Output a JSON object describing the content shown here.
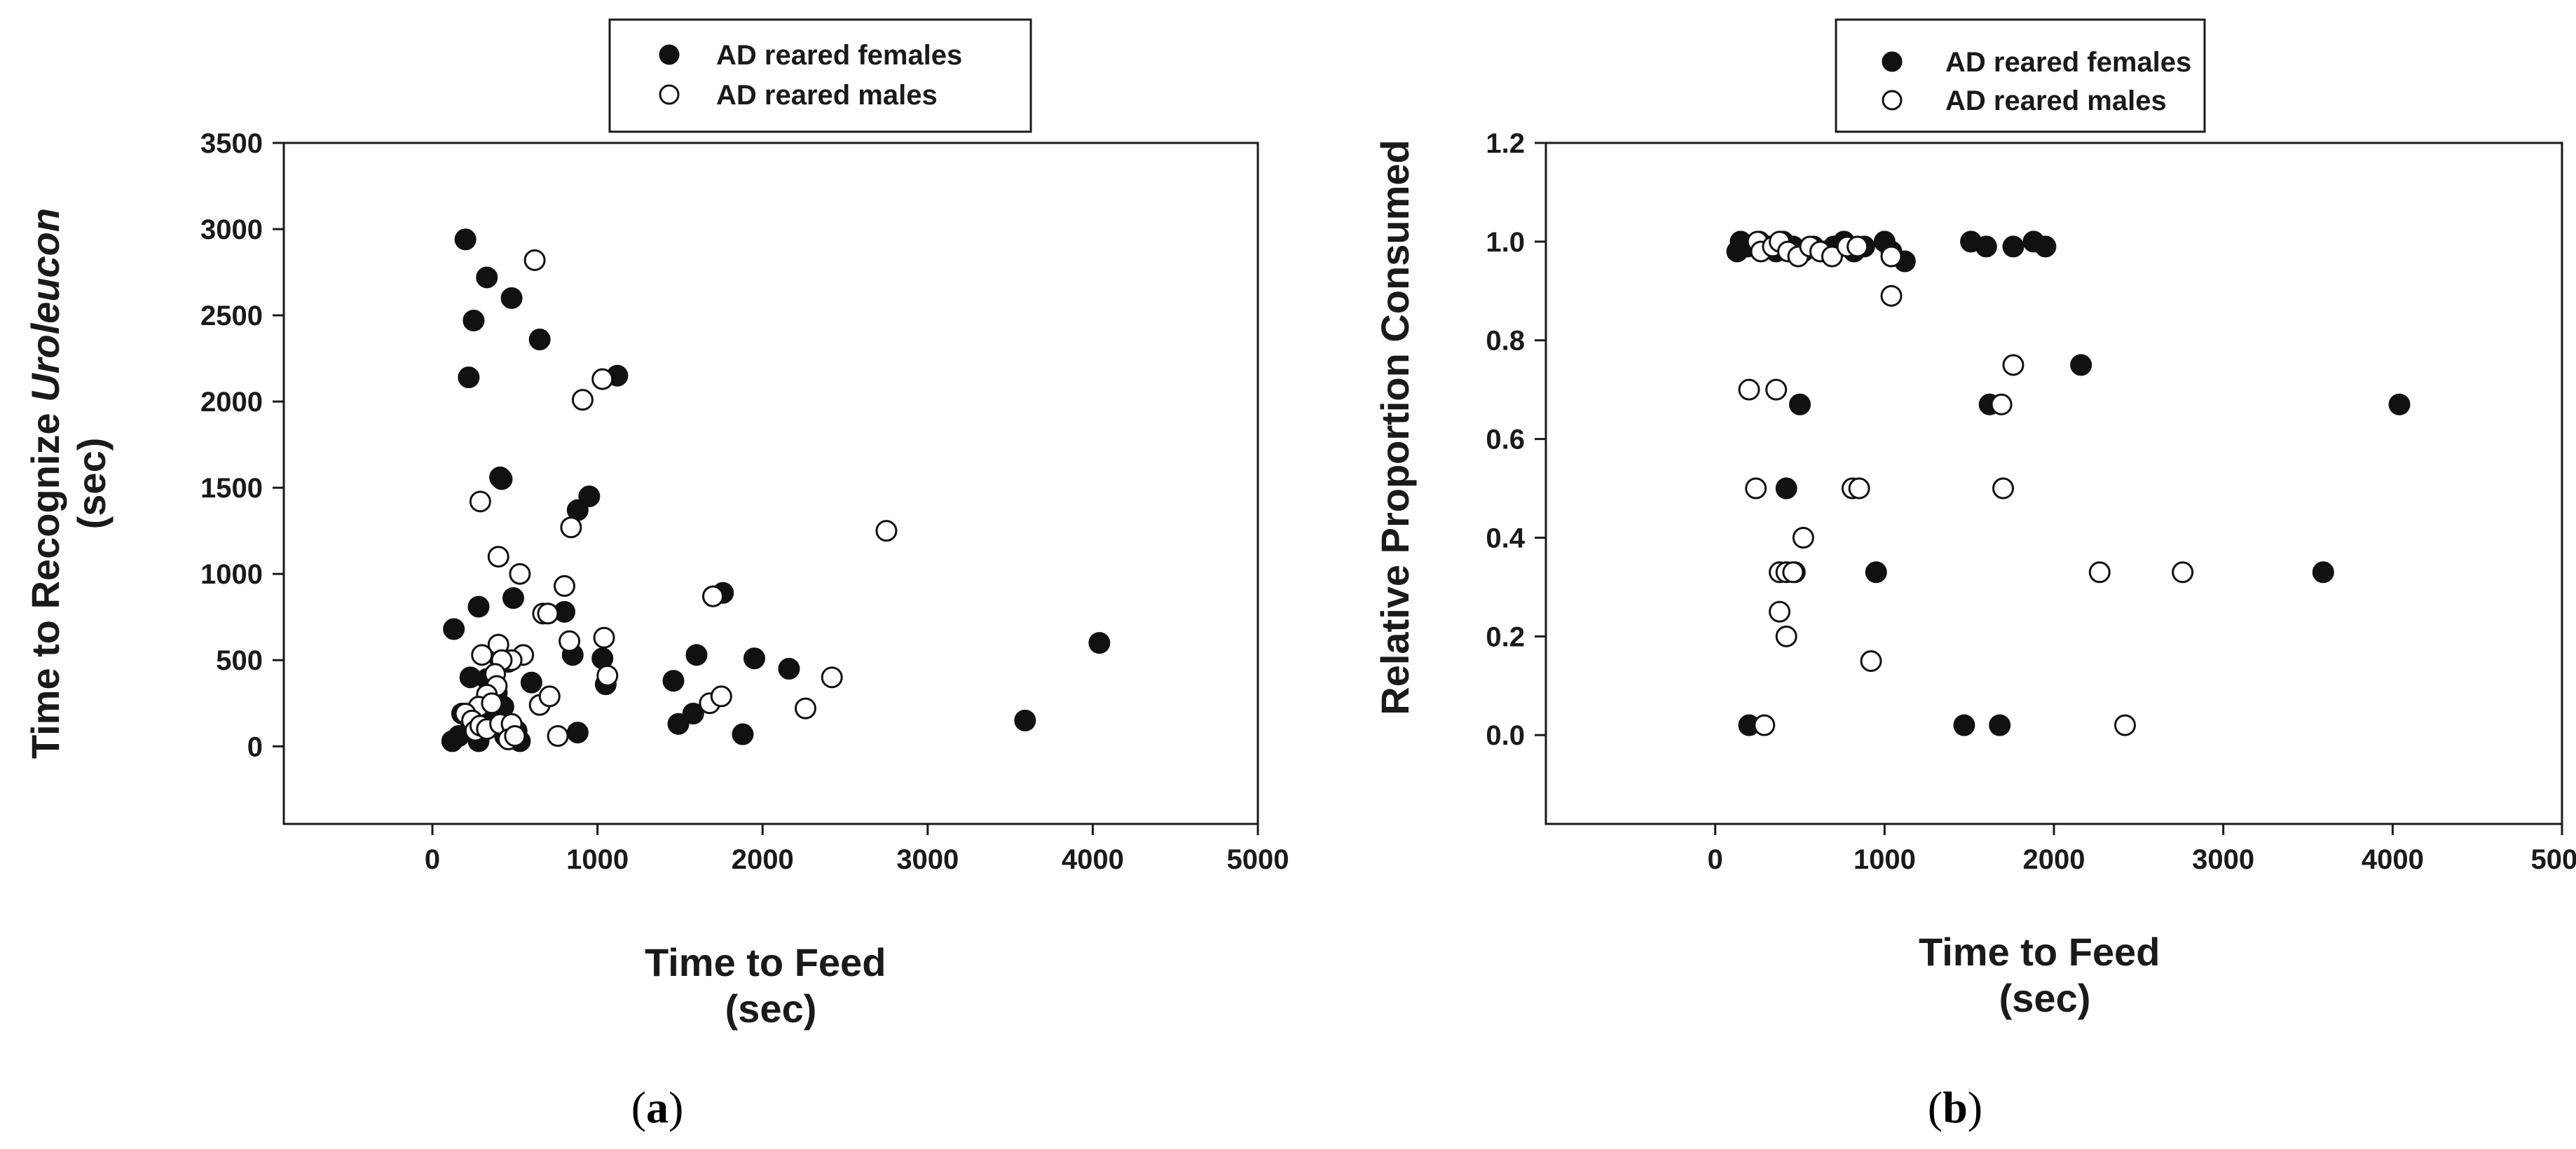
{
  "chart_data": [
    {
      "type": "scatter",
      "panel_label": "a",
      "xlabel_line1": "Time to Feed",
      "xlabel_line2": "(sec)",
      "ylabel_prefix": "Time to Recognize ",
      "ylabel_italic": "Uroleucon",
      "ylabel_line2": "(sec)",
      "xlim": [
        -900,
        5000
      ],
      "ylim": [
        -450,
        3500
      ],
      "xticks": [
        0,
        1000,
        2000,
        3000,
        4000,
        5000
      ],
      "yticks": [
        0,
        500,
        1000,
        1500,
        2000,
        2500,
        3000,
        3500
      ],
      "tick_labels_x": [
        "0",
        "1000",
        "2000",
        "3000",
        "4000",
        "5000"
      ],
      "tick_labels_y": [
        "0",
        "500",
        "1000",
        "1500",
        "2000",
        "2500",
        "3000",
        "3500"
      ],
      "legend": [
        "AD reared females",
        "AD reared males"
      ],
      "series": [
        {
          "name": "AD reared females",
          "marker": "filled",
          "points": [
            [
              200,
              2940
            ],
            [
              330,
              2720
            ],
            [
              480,
              2600
            ],
            [
              250,
              2470
            ],
            [
              650,
              2360
            ],
            [
              220,
              2140
            ],
            [
              1120,
              2150
            ],
            [
              410,
              1560
            ],
            [
              420,
              1550
            ],
            [
              950,
              1450
            ],
            [
              880,
              1370
            ],
            [
              130,
              680
            ],
            [
              280,
              810
            ],
            [
              490,
              860
            ],
            [
              800,
              780
            ],
            [
              850,
              530
            ],
            [
              1030,
              510
            ],
            [
              1050,
              360
            ],
            [
              600,
              370
            ],
            [
              230,
              400
            ],
            [
              330,
              390
            ],
            [
              400,
              520
            ],
            [
              460,
              490
            ],
            [
              350,
              280
            ],
            [
              390,
              310
            ],
            [
              430,
              230
            ],
            [
              300,
              180
            ],
            [
              370,
              210
            ],
            [
              180,
              190
            ],
            [
              230,
              100
            ],
            [
              160,
              60
            ],
            [
              120,
              30
            ],
            [
              280,
              30
            ],
            [
              440,
              60
            ],
            [
              470,
              50
            ],
            [
              530,
              30
            ],
            [
              510,
              90
            ],
            [
              880,
              80
            ],
            [
              1460,
              380
            ],
            [
              1600,
              530
            ],
            [
              1490,
              130
            ],
            [
              1580,
              190
            ],
            [
              1760,
              890
            ],
            [
              1700,
              870
            ],
            [
              1950,
              510
            ],
            [
              2160,
              450
            ],
            [
              1880,
              70
            ],
            [
              3590,
              150
            ],
            [
              4040,
              600
            ]
          ]
        },
        {
          "name": "AD reared males",
          "marker": "open",
          "points": [
            [
              620,
              2820
            ],
            [
              1030,
              2130
            ],
            [
              910,
              2010
            ],
            [
              290,
              1420
            ],
            [
              840,
              1270
            ],
            [
              400,
              1100
            ],
            [
              530,
              1000
            ],
            [
              800,
              930
            ],
            [
              670,
              770
            ],
            [
              700,
              770
            ],
            [
              830,
              610
            ],
            [
              1040,
              630
            ],
            [
              550,
              530
            ],
            [
              480,
              500
            ],
            [
              1060,
              410
            ],
            [
              400,
              590
            ],
            [
              300,
              530
            ],
            [
              420,
              500
            ],
            [
              380,
              420
            ],
            [
              390,
              350
            ],
            [
              330,
              300
            ],
            [
              280,
              230
            ],
            [
              360,
              250
            ],
            [
              200,
              190
            ],
            [
              240,
              150
            ],
            [
              260,
              90
            ],
            [
              290,
              120
            ],
            [
              330,
              100
            ],
            [
              410,
              130
            ],
            [
              480,
              130
            ],
            [
              460,
              40
            ],
            [
              500,
              60
            ],
            [
              650,
              240
            ],
            [
              710,
              290
            ],
            [
              760,
              60
            ],
            [
              1700,
              870
            ],
            [
              1680,
              250
            ],
            [
              1750,
              290
            ],
            [
              2420,
              400
            ],
            [
              2260,
              220
            ],
            [
              2750,
              1250
            ]
          ]
        }
      ]
    },
    {
      "type": "scatter",
      "panel_label": "b",
      "xlabel_line1": "Time to Feed",
      "xlabel_line2": "(sec)",
      "ylabel": "Relative Proportion Consumed",
      "xlim": [
        -1000,
        5000
      ],
      "ylim": [
        -0.18,
        1.2
      ],
      "xticks": [
        0,
        1000,
        2000,
        3000,
        4000,
        5000
      ],
      "yticks": [
        0.0,
        0.2,
        0.4,
        0.6,
        0.8,
        1.0,
        1.2
      ],
      "tick_labels_x": [
        "0",
        "1000",
        "2000",
        "3000",
        "4000",
        "5000"
      ],
      "tick_labels_y": [
        "0.0",
        "0.2",
        "0.4",
        "0.6",
        "0.8",
        "1.0",
        "1.2"
      ],
      "legend": [
        "AD reared females",
        "AD reared males"
      ],
      "series": [
        {
          "name": "AD reared females",
          "marker": "filled",
          "points": [
            [
              130,
              0.98
            ],
            [
              150,
              1.0
            ],
            [
              190,
              0.99
            ],
            [
              260,
              1.0
            ],
            [
              320,
              0.99
            ],
            [
              360,
              0.98
            ],
            [
              400,
              1.0
            ],
            [
              460,
              0.99
            ],
            [
              520,
              0.98
            ],
            [
              580,
              0.99
            ],
            [
              640,
              0.98
            ],
            [
              700,
              0.99
            ],
            [
              760,
              1.0
            ],
            [
              820,
              0.98
            ],
            [
              880,
              0.99
            ],
            [
              1000,
              1.0
            ],
            [
              1040,
              0.98
            ],
            [
              1120,
              0.96
            ],
            [
              1510,
              1.0
            ],
            [
              1600,
              0.99
            ],
            [
              1760,
              0.99
            ],
            [
              1880,
              1.0
            ],
            [
              1950,
              0.99
            ],
            [
              2160,
              0.75
            ],
            [
              1620,
              0.67
            ],
            [
              500,
              0.67
            ],
            [
              4040,
              0.67
            ],
            [
              420,
              0.5
            ],
            [
              470,
              0.33
            ],
            [
              950,
              0.33
            ],
            [
              3590,
              0.33
            ],
            [
              200,
              0.02
            ],
            [
              1470,
              0.02
            ],
            [
              1680,
              0.02
            ]
          ]
        },
        {
          "name": "AD reared males",
          "marker": "open",
          "points": [
            [
              250,
              1.0
            ],
            [
              270,
              0.98
            ],
            [
              340,
              0.99
            ],
            [
              380,
              1.0
            ],
            [
              430,
              0.98
            ],
            [
              490,
              0.97
            ],
            [
              560,
              0.99
            ],
            [
              620,
              0.98
            ],
            [
              690,
              0.97
            ],
            [
              780,
              0.99
            ],
            [
              840,
              0.99
            ],
            [
              1040,
              0.97
            ],
            [
              1040,
              0.89
            ],
            [
              1760,
              0.75
            ],
            [
              200,
              0.7
            ],
            [
              360,
              0.7
            ],
            [
              1690,
              0.67
            ],
            [
              240,
              0.5
            ],
            [
              810,
              0.5
            ],
            [
              850,
              0.5
            ],
            [
              1700,
              0.5
            ],
            [
              520,
              0.4
            ],
            [
              380,
              0.33
            ],
            [
              420,
              0.33
            ],
            [
              460,
              0.33
            ],
            [
              2270,
              0.33
            ],
            [
              2760,
              0.33
            ],
            [
              380,
              0.25
            ],
            [
              420,
              0.2
            ],
            [
              920,
              0.15
            ],
            [
              290,
              0.02
            ],
            [
              2420,
              0.02
            ]
          ]
        }
      ]
    }
  ]
}
